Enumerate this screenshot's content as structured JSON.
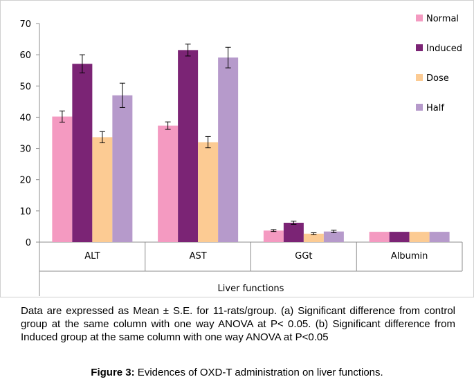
{
  "chart_data": {
    "type": "bar",
    "categories": [
      "ALT",
      "AST",
      "GGt",
      "Albumin"
    ],
    "series": [
      {
        "name": "Normal",
        "color": "#F49AC1",
        "values": [
          40.2,
          37.3,
          3.7,
          3.3
        ],
        "errors": [
          1.8,
          1.2,
          0.3,
          0
        ]
      },
      {
        "name": "Induced",
        "color": "#7B2475",
        "values": [
          57.1,
          61.5,
          6.2,
          3.3
        ],
        "errors": [
          2.9,
          1.9,
          0.5,
          0
        ]
      },
      {
        "name": "Dose",
        "color": "#FCCB93",
        "values": [
          33.6,
          32.0,
          2.7,
          3.3
        ],
        "errors": [
          1.8,
          1.8,
          0.3,
          0
        ]
      },
      {
        "name": "Half",
        "color": "#B69ACB",
        "values": [
          47.0,
          59.1,
          3.4,
          3.3
        ],
        "errors": [
          3.9,
          3.3,
          0.4,
          0
        ]
      }
    ],
    "yticks": [
      0,
      10,
      20,
      30,
      40,
      50,
      60,
      70
    ],
    "ylim": [
      0,
      70
    ],
    "xlabel": "Liver functions",
    "ylabel": "",
    "title": "",
    "grid": false,
    "legend_position": "top-right"
  },
  "caption": {
    "note": "Data are expressed as Mean ± S.E. for 11-rats/group. (a) Significant difference from control group at the same column with one way ANOVA at P< 0.05. (b) Significant difference from Induced group at the same column with one way ANOVA at P<0.05",
    "figure_label": "Figure 3:",
    "figure_text": " Evidences of OXD-T administration on liver functions."
  }
}
